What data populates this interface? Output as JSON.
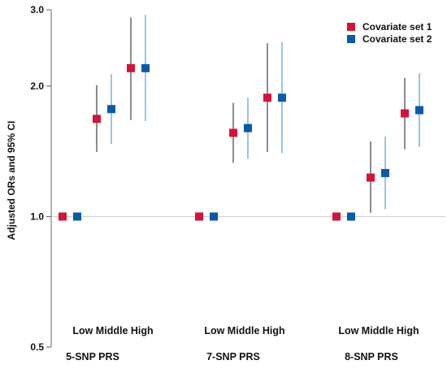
{
  "chart_data": {
    "type": "scatter",
    "ylabel": "Adjusted ORs and 95% CI",
    "y_scale": "log",
    "ylim": [
      0.5,
      3.0
    ],
    "y_ticks": [
      "0.5",
      "1.0",
      "2.0",
      "3.0"
    ],
    "reference_line": 1.0,
    "legend_position": "top-right",
    "groups": [
      {
        "name": "5-SNP PRS",
        "category_text": "Low Middle High",
        "categories": [
          "Low",
          "Middle",
          "High"
        ]
      },
      {
        "name": "7-SNP PRS",
        "category_text": "Low  Middle High",
        "categories": [
          "Low",
          "Middle",
          "High"
        ]
      },
      {
        "name": "8-SNP PRS",
        "category_text": "Low Middle High",
        "categories": [
          "Low",
          "Middle",
          "High"
        ]
      }
    ],
    "series": [
      {
        "name": "Covariate set 1",
        "color": "#d2143a",
        "ci_color": "#7f7f7f",
        "points": [
          {
            "group": "5-SNP PRS",
            "category": "Low",
            "or": 1.0,
            "lower": 1.0,
            "upper": 1.0
          },
          {
            "group": "5-SNP PRS",
            "category": "Middle",
            "or": 1.68,
            "lower": 1.41,
            "upper": 2.01
          },
          {
            "group": "5-SNP PRS",
            "category": "High",
            "or": 2.2,
            "lower": 1.67,
            "upper": 2.88
          },
          {
            "group": "7-SNP PRS",
            "category": "Low",
            "or": 1.0,
            "lower": 1.0,
            "upper": 1.0
          },
          {
            "group": "7-SNP PRS",
            "category": "Middle",
            "or": 1.56,
            "lower": 1.33,
            "upper": 1.83
          },
          {
            "group": "7-SNP PRS",
            "category": "High",
            "or": 1.88,
            "lower": 1.41,
            "upper": 2.51
          },
          {
            "group": "8-SNP PRS",
            "category": "Low",
            "or": 1.0,
            "lower": 1.0,
            "upper": 1.0
          },
          {
            "group": "8-SNP PRS",
            "category": "Middle",
            "or": 1.23,
            "lower": 1.02,
            "upper": 1.49
          },
          {
            "group": "8-SNP PRS",
            "category": "High",
            "or": 1.73,
            "lower": 1.43,
            "upper": 2.09
          }
        ]
      },
      {
        "name": "Covariate set 2",
        "color": "#0b5aa6",
        "ci_color": "#8fbde0",
        "points": [
          {
            "group": "5-SNP PRS",
            "category": "Low",
            "or": 1.0,
            "lower": 1.0,
            "upper": 1.0
          },
          {
            "group": "5-SNP PRS",
            "category": "Middle",
            "or": 1.77,
            "lower": 1.47,
            "upper": 2.13
          },
          {
            "group": "5-SNP PRS",
            "category": "High",
            "or": 2.2,
            "lower": 1.66,
            "upper": 2.92
          },
          {
            "group": "7-SNP PRS",
            "category": "Low",
            "or": 1.0,
            "lower": 1.0,
            "upper": 1.0
          },
          {
            "group": "7-SNP PRS",
            "category": "Middle",
            "or": 1.6,
            "lower": 1.36,
            "upper": 1.88
          },
          {
            "group": "7-SNP PRS",
            "category": "High",
            "or": 1.88,
            "lower": 1.4,
            "upper": 2.53
          },
          {
            "group": "8-SNP PRS",
            "category": "Low",
            "or": 1.0,
            "lower": 1.0,
            "upper": 1.0
          },
          {
            "group": "8-SNP PRS",
            "category": "Middle",
            "or": 1.26,
            "lower": 1.04,
            "upper": 1.53
          },
          {
            "group": "8-SNP PRS",
            "category": "High",
            "or": 1.76,
            "lower": 1.45,
            "upper": 2.14
          }
        ]
      }
    ]
  }
}
